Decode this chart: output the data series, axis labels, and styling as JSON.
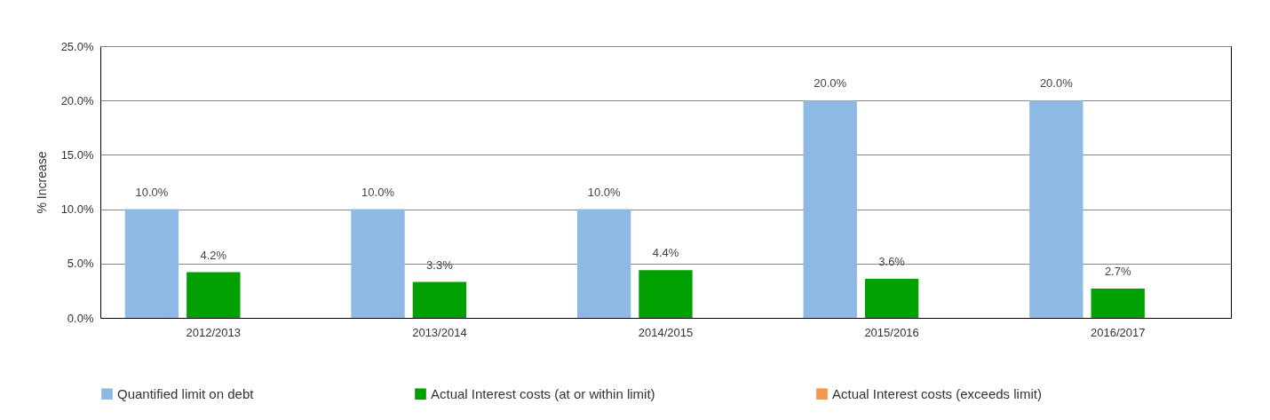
{
  "chart_data": {
    "type": "bar",
    "ylabel": "% Increase",
    "categories": [
      "2012/2013",
      "2013/2014",
      "2014/2015",
      "2015/2016",
      "2016/2017"
    ],
    "series": [
      {
        "name": "Quantified limit on debt",
        "color": "#8db9e2",
        "values": [
          10.0,
          10.0,
          10.0,
          20.0,
          20.0
        ],
        "value_labels": [
          "10.0%",
          "10.0%",
          "10.0%",
          "20.0%",
          "20.0%"
        ]
      },
      {
        "name": "Actual Interest costs (at or within limit)",
        "color": "#00a000",
        "values": [
          4.2,
          3.3,
          4.4,
          3.6,
          2.7
        ],
        "value_labels": [
          "4.2%",
          "3.3%",
          "4.4%",
          "3.6%",
          "2.7%"
        ]
      },
      {
        "name": "Actual Interest costs (exceeds limit)",
        "color": "#f79646",
        "values": [
          null,
          null,
          null,
          null,
          null
        ]
      }
    ],
    "ylim": [
      0,
      25
    ],
    "yticks": [
      {
        "value": 0,
        "label": "0.0%"
      },
      {
        "value": 5,
        "label": "5.0%"
      },
      {
        "value": 10,
        "label": "10.0%"
      },
      {
        "value": 15,
        "label": "15.0%"
      },
      {
        "value": 20,
        "label": "20.0%"
      },
      {
        "value": 25,
        "label": "25.0%"
      }
    ],
    "grid": "y",
    "legend": "bottom"
  }
}
